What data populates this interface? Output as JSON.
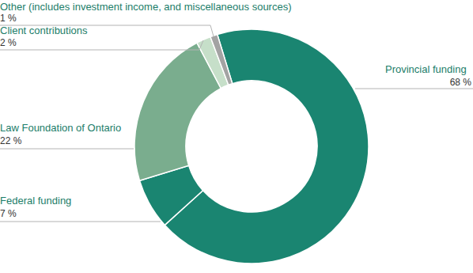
{
  "chart_data": {
    "type": "donut",
    "categories": [
      "Provincial funding",
      "Federal funding",
      "Law Foundation of Ontario",
      "Client contributions",
      "Other (includes investment income, and miscellaneous sources)"
    ],
    "values": [
      68,
      7,
      22,
      2,
      1
    ],
    "value_labels": [
      "68 %",
      "7 %",
      "22 %",
      "2 %",
      "1 %"
    ],
    "colors": [
      "#1a8571",
      "#1a8571",
      "#7aad8e",
      "#c6dfc9",
      "#a3a3a3"
    ],
    "data_labels": true
  }
}
